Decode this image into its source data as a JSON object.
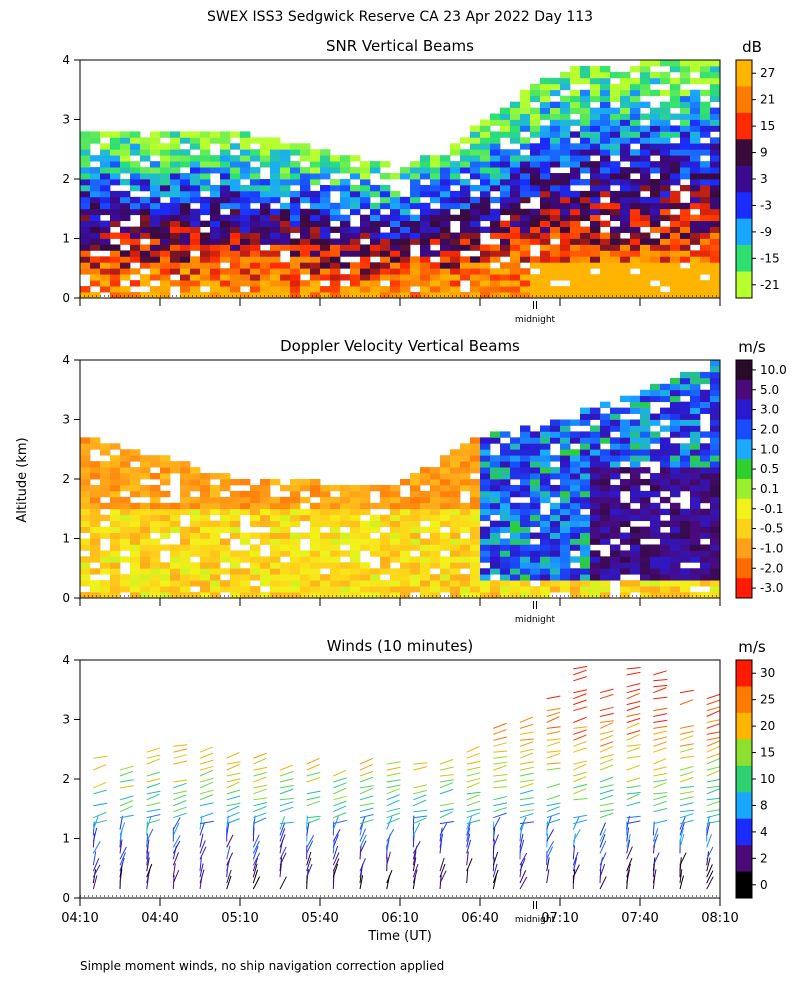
{
  "title": "SWEX ISS3 Sedgwick Reserve CA  23 Apr 2022 Day 113",
  "ylabel": "Altitude (km)",
  "xlabel": "Time (UT)",
  "footer": "Simple moment winds, no ship navigation correction applied",
  "midnight_label": "midnight",
  "chart_data": [
    {
      "type": "heatmap",
      "title": "SNR Vertical Beams",
      "colorbar_unit": "dB",
      "colorbar_labels": [
        "27",
        "21",
        "15",
        "9",
        "3",
        "-3",
        "-9",
        "-15",
        "-21"
      ],
      "colorbar_colors": [
        "#ffb400",
        "#ff7a00",
        "#ff2a00",
        "#3a0a3a",
        "#3c0a90",
        "#1a2cff",
        "#1aa7ff",
        "#2ee070",
        "#b7ff2e"
      ],
      "x_range": [
        "04:10",
        "08:10"
      ],
      "ylim": [
        0,
        4
      ],
      "yticks": [
        0,
        1,
        2,
        3,
        4
      ],
      "approx_top_of_data_km": [
        {
          "time": "04:10",
          "top_km": 2.8
        },
        {
          "time": "05:10",
          "top_km": 2.8
        },
        {
          "time": "06:10",
          "top_km": 2.2
        },
        {
          "time": "06:40",
          "top_km": 2.9
        },
        {
          "time": "07:10",
          "top_km": 3.9
        },
        {
          "time": "08:10",
          "top_km": 4.0
        }
      ]
    },
    {
      "type": "heatmap",
      "title": "Doppler Velocity Vertical Beams",
      "colorbar_unit": "m/s",
      "colorbar_labels": [
        "10.0",
        "5.0",
        "3.0",
        "2.0",
        "1.0",
        "0.5",
        "0.1",
        "-0.1",
        "-0.5",
        "-1.0",
        "-2.0",
        "-3.0"
      ],
      "colorbar_colors": [
        "#2a0a2a",
        "#4a0a7a",
        "#2a1acf",
        "#1a4cff",
        "#1aaaff",
        "#2ed02e",
        "#9af02e",
        "#f2f21a",
        "#ffd21a",
        "#ffa01a",
        "#ff6a00",
        "#ff1a00"
      ],
      "x_range": [
        "04:10",
        "08:10"
      ],
      "ylim": [
        0,
        4
      ],
      "yticks": [
        0,
        1,
        2,
        3,
        4
      ],
      "approx_top_of_data_km": [
        {
          "time": "04:10",
          "top_km": 2.8
        },
        {
          "time": "05:10",
          "top_km": 2.0
        },
        {
          "time": "06:10",
          "top_km": 1.9
        },
        {
          "time": "06:40",
          "top_km": 2.7
        },
        {
          "time": "07:10",
          "top_km": 3.0
        },
        {
          "time": "08:10",
          "top_km": 4.0
        }
      ]
    },
    {
      "type": "scatter",
      "title": "Winds (10 minutes)",
      "colorbar_unit": "m/s",
      "colorbar_labels": [
        "30",
        "25",
        "20",
        "15",
        "10",
        "8",
        "4",
        "2",
        "0"
      ],
      "colorbar_colors": [
        "#ff1a00",
        "#ff7a00",
        "#ffb400",
        "#8ce02e",
        "#2ed070",
        "#1aa7ff",
        "#1a2cff",
        "#4a0a7a",
        "#000000"
      ],
      "xticks": [
        "04:10",
        "04:40",
        "05:10",
        "05:40",
        "06:10",
        "06:40",
        "07:10",
        "07:40",
        "08:10"
      ],
      "ylim": [
        0,
        4
      ],
      "yticks": [
        0,
        1,
        2,
        3,
        4
      ],
      "profiles": [
        {
          "time": "04:15",
          "top_km": 2.4
        },
        {
          "time": "04:25",
          "top_km": 2.3
        },
        {
          "time": "04:35",
          "top_km": 2.5
        },
        {
          "time": "04:45",
          "top_km": 2.6
        },
        {
          "time": "04:55",
          "top_km": 2.5
        },
        {
          "time": "05:05",
          "top_km": 2.5
        },
        {
          "time": "05:15",
          "top_km": 2.4
        },
        {
          "time": "05:25",
          "top_km": 2.2
        },
        {
          "time": "05:35",
          "top_km": 2.3
        },
        {
          "time": "05:45",
          "top_km": 2.2
        },
        {
          "time": "05:55",
          "top_km": 2.3
        },
        {
          "time": "06:05",
          "top_km": 2.3
        },
        {
          "time": "06:15",
          "top_km": 2.4
        },
        {
          "time": "06:25",
          "top_km": 2.3
        },
        {
          "time": "06:35",
          "top_km": 2.5
        },
        {
          "time": "06:45",
          "top_km": 2.9
        },
        {
          "time": "06:55",
          "top_km": 3.0
        },
        {
          "time": "07:05",
          "top_km": 3.5
        },
        {
          "time": "07:15",
          "top_km": 3.9
        },
        {
          "time": "07:25",
          "top_km": 3.5
        },
        {
          "time": "07:35",
          "top_km": 4.0
        },
        {
          "time": "07:45",
          "top_km": 3.8
        },
        {
          "time": "07:55",
          "top_km": 3.5
        },
        {
          "time": "08:05",
          "top_km": 3.4
        }
      ]
    }
  ]
}
